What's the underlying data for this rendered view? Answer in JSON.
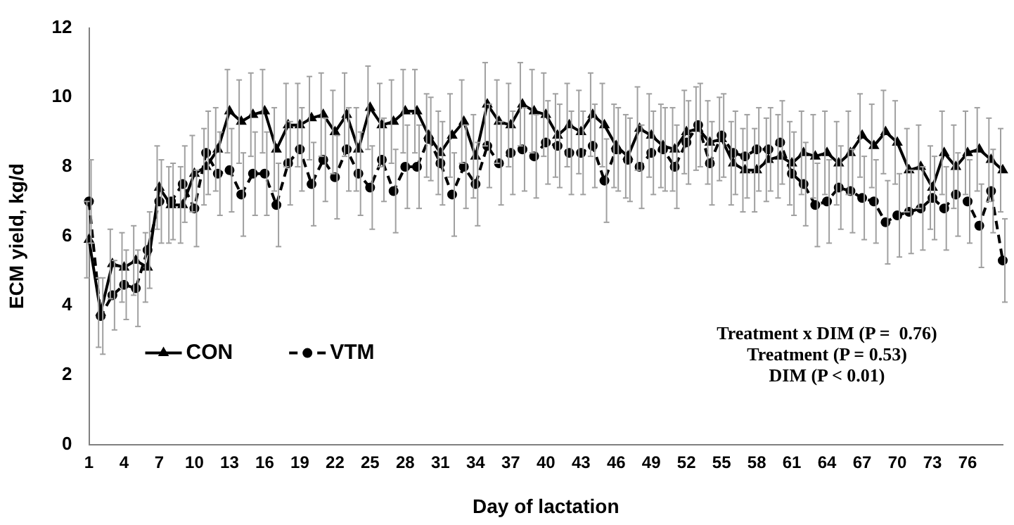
{
  "chart_data": {
    "type": "line",
    "xlabel": "Day of lactation",
    "ylabel": "ECM yield, kg/d",
    "categories": [
      "1",
      null,
      null,
      "4",
      null,
      null,
      "7",
      null,
      null,
      "10",
      null,
      null,
      "13",
      null,
      null,
      "16",
      null,
      null,
      "19",
      null,
      null,
      "22",
      null,
      null,
      "25",
      null,
      null,
      "28",
      null,
      null,
      "31",
      null,
      null,
      "34",
      null,
      null,
      "37",
      null,
      null,
      "40",
      null,
      null,
      "43",
      null,
      null,
      "46",
      null,
      null,
      "49",
      null,
      null,
      "52",
      null,
      null,
      "55",
      null,
      null,
      "58",
      null,
      null,
      "61",
      null,
      null,
      "64",
      null,
      null,
      "67",
      null,
      null,
      "70",
      null,
      null,
      "73",
      null,
      null,
      "76",
      null,
      null,
      null
    ],
    "ylim": [
      0,
      12
    ],
    "yticks": [
      0,
      2,
      4,
      6,
      8,
      10,
      12
    ],
    "grid": false,
    "legend": "bottom left",
    "series": [
      {
        "name": "CON",
        "color": "#000000",
        "marker": "triangle",
        "line_style": "solid",
        "values": [
          5.9,
          3.8,
          5.2,
          5.1,
          5.3,
          5.1,
          7.4,
          6.9,
          6.9,
          7.8,
          8.0,
          8.5,
          9.6,
          9.3,
          9.5,
          9.6,
          8.5,
          9.2,
          9.2,
          9.4,
          9.5,
          9.0,
          9.5,
          8.5,
          9.7,
          9.2,
          9.3,
          9.6,
          9.6,
          8.9,
          8.4,
          8.9,
          9.3,
          8.3,
          9.8,
          9.3,
          9.2,
          9.8,
          9.6,
          9.5,
          8.9,
          9.2,
          9.0,
          9.5,
          9.2,
          8.6,
          8.3,
          9.1,
          8.9,
          8.6,
          8.5,
          9.0,
          9.1,
          8.7,
          8.8,
          8.1,
          7.9,
          7.9,
          8.2,
          8.3,
          8.1,
          8.4,
          8.3,
          8.4,
          8.1,
          8.4,
          8.9,
          8.6,
          9.0,
          8.7,
          7.9,
          8.0,
          7.4,
          8.4,
          8.0,
          8.4,
          8.5,
          8.2,
          7.9
        ],
        "errors": [
          1.1,
          1.0,
          1.0,
          1.0,
          1.0,
          1.0,
          1.2,
          1.1,
          1.1,
          1.1,
          1.1,
          1.2,
          1.2,
          1.2,
          1.2,
          1.2,
          1.2,
          1.2,
          1.2,
          1.2,
          1.2,
          1.2,
          1.2,
          1.2,
          1.2,
          1.2,
          1.2,
          1.2,
          1.2,
          1.2,
          1.2,
          1.2,
          1.2,
          1.2,
          1.2,
          1.2,
          1.2,
          1.2,
          1.2,
          1.2,
          1.2,
          1.2,
          1.2,
          1.2,
          1.2,
          1.2,
          1.2,
          1.2,
          1.2,
          1.2,
          1.2,
          1.2,
          1.2,
          1.2,
          1.2,
          1.2,
          1.2,
          1.2,
          1.2,
          1.2,
          1.2,
          1.2,
          1.2,
          1.2,
          1.2,
          1.2,
          1.2,
          1.2,
          1.2,
          1.2,
          1.2,
          1.2,
          1.2,
          1.2,
          1.2,
          1.2,
          1.2,
          1.2,
          1.2
        ]
      },
      {
        "name": "VTM",
        "color": "#000000",
        "marker": "circle",
        "line_style": "dashed",
        "values": [
          7.0,
          3.7,
          4.3,
          4.6,
          4.5,
          5.6,
          7.0,
          7.0,
          7.5,
          6.8,
          8.4,
          7.8,
          7.9,
          7.2,
          7.8,
          7.8,
          6.9,
          8.1,
          8.5,
          7.5,
          8.2,
          7.7,
          8.5,
          7.8,
          7.4,
          8.2,
          7.3,
          8.0,
          8.0,
          8.8,
          8.1,
          7.2,
          8.0,
          7.5,
          8.6,
          8.1,
          8.4,
          8.5,
          8.3,
          8.7,
          8.6,
          8.4,
          8.4,
          8.6,
          7.6,
          8.5,
          8.2,
          8.0,
          8.4,
          8.5,
          8.0,
          8.7,
          9.2,
          8.1,
          8.9,
          8.4,
          8.3,
          8.5,
          8.5,
          8.7,
          7.8,
          7.5,
          6.9,
          7.0,
          7.4,
          7.3,
          7.1,
          7.0,
          6.4,
          6.6,
          6.7,
          6.8,
          7.1,
          6.8,
          7.2,
          7.0,
          6.3,
          7.3,
          5.3
        ],
        "errors": [
          1.2,
          1.1,
          1.0,
          1.0,
          1.1,
          1.1,
          1.2,
          1.1,
          1.1,
          1.1,
          1.2,
          1.2,
          1.2,
          1.2,
          1.2,
          1.2,
          1.2,
          1.2,
          1.2,
          1.2,
          1.2,
          1.2,
          1.2,
          1.2,
          1.2,
          1.2,
          1.2,
          1.2,
          1.2,
          1.2,
          1.2,
          1.2,
          1.2,
          1.2,
          1.2,
          1.2,
          1.2,
          1.2,
          1.2,
          1.2,
          1.2,
          1.2,
          1.2,
          1.2,
          1.2,
          1.2,
          1.2,
          1.2,
          1.2,
          1.2,
          1.2,
          1.2,
          1.2,
          1.2,
          1.2,
          1.2,
          1.2,
          1.2,
          1.2,
          1.2,
          1.2,
          1.2,
          1.2,
          1.2,
          1.2,
          1.2,
          1.2,
          1.2,
          1.2,
          1.2,
          1.2,
          1.2,
          1.2,
          1.2,
          1.2,
          1.2,
          1.2,
          1.2,
          1.2
        ]
      }
    ],
    "annotations": [
      "Treatment x DIM (P =  0.76)",
      "Treatment (P = 0.53)",
      "DIM (P < 0.01)"
    ]
  }
}
